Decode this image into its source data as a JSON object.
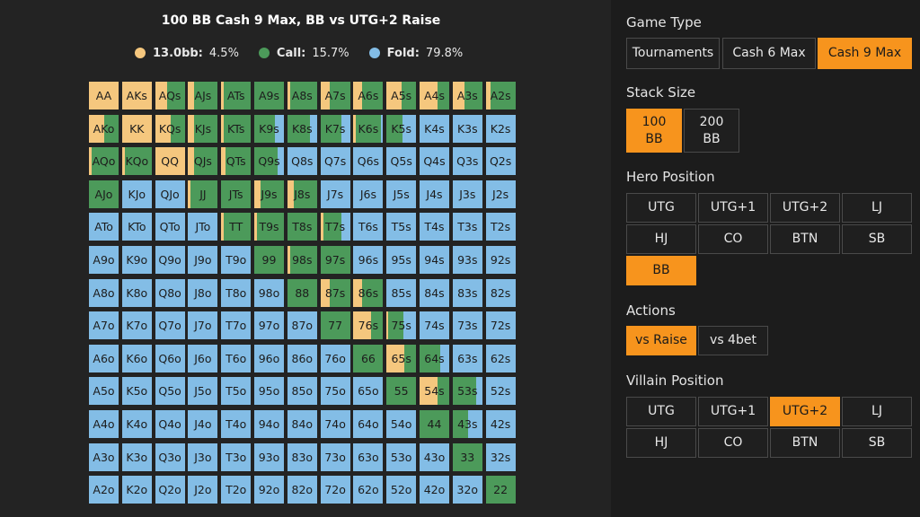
{
  "chart": {
    "title": "100 BB Cash 9 Max, BB vs UTG+2 Raise",
    "legend": [
      {
        "name": "13.0bb:",
        "value": "4.5%",
        "color": "#f5c77e"
      },
      {
        "name": "Call:",
        "value": "15.7%",
        "color": "#4c9a5a"
      },
      {
        "name": "Fold:",
        "value": "79.8%",
        "color": "#83bde6"
      }
    ],
    "colors": {
      "raise": "#f5c77e",
      "call": "#4c9a5a",
      "fold": "#83bde6"
    },
    "hands": [
      [
        "AA",
        "AKs",
        "AQs",
        "AJs",
        "ATs",
        "A9s",
        "A8s",
        "A7s",
        "A6s",
        "A5s",
        "A4s",
        "A3s",
        "A2s"
      ],
      [
        "AKo",
        "KK",
        "KQs",
        "KJs",
        "KTs",
        "K9s",
        "K8s",
        "K7s",
        "K6s",
        "K5s",
        "K4s",
        "K3s",
        "K2s"
      ],
      [
        "AQo",
        "KQo",
        "QQ",
        "QJs",
        "QTs",
        "Q9s",
        "Q8s",
        "Q7s",
        "Q6s",
        "Q5s",
        "Q4s",
        "Q3s",
        "Q2s"
      ],
      [
        "AJo",
        "KJo",
        "QJo",
        "JJ",
        "JTs",
        "J9s",
        "J8s",
        "J7s",
        "J6s",
        "J5s",
        "J4s",
        "J3s",
        "J2s"
      ],
      [
        "ATo",
        "KTo",
        "QTo",
        "JTo",
        "TT",
        "T9s",
        "T8s",
        "T7s",
        "T6s",
        "T5s",
        "T4s",
        "T3s",
        "T2s"
      ],
      [
        "A9o",
        "K9o",
        "Q9o",
        "J9o",
        "T9o",
        "99",
        "98s",
        "97s",
        "96s",
        "95s",
        "94s",
        "93s",
        "92s"
      ],
      [
        "A8o",
        "K8o",
        "Q8o",
        "J8o",
        "T8o",
        "98o",
        "88",
        "87s",
        "86s",
        "85s",
        "84s",
        "83s",
        "82s"
      ],
      [
        "A7o",
        "K7o",
        "Q7o",
        "J7o",
        "T7o",
        "97o",
        "87o",
        "77",
        "76s",
        "75s",
        "74s",
        "73s",
        "72s"
      ],
      [
        "A6o",
        "K6o",
        "Q6o",
        "J6o",
        "T6o",
        "96o",
        "86o",
        "76o",
        "66",
        "65s",
        "64s",
        "63s",
        "62s"
      ],
      [
        "A5o",
        "K5o",
        "Q5o",
        "J5o",
        "T5o",
        "95o",
        "85o",
        "75o",
        "65o",
        "55",
        "54s",
        "53s",
        "52s"
      ],
      [
        "A4o",
        "K4o",
        "Q4o",
        "J4o",
        "T4o",
        "94o",
        "84o",
        "74o",
        "64o",
        "54o",
        "44",
        "43s",
        "42s"
      ],
      [
        "A3o",
        "K3o",
        "Q3o",
        "J3o",
        "T3o",
        "93o",
        "83o",
        "73o",
        "63o",
        "53o",
        "43o",
        "33",
        "32s"
      ],
      [
        "A2o",
        "K2o",
        "Q2o",
        "J2o",
        "T2o",
        "92o",
        "82o",
        "72o",
        "62o",
        "52o",
        "42o",
        "32o",
        "22"
      ]
    ],
    "mix": {
      "AA": [
        1,
        0
      ],
      "AKs": [
        1,
        0
      ],
      "AQs": [
        0.4,
        0.6
      ],
      "AJs": [
        0.2,
        0.8
      ],
      "ATs": [
        0.1,
        0.9
      ],
      "A9s": [
        0,
        1
      ],
      "A8s": [
        0.1,
        0.9
      ],
      "A7s": [
        0.3,
        0.7
      ],
      "A6s": [
        0.3,
        0.7
      ],
      "A5s": [
        0.5,
        0.5
      ],
      "A4s": [
        0.6,
        0.4
      ],
      "A3s": [
        0.4,
        0.6
      ],
      "A2s": [
        0.15,
        0.85
      ],
      "AKo": [
        0.5,
        0.5
      ],
      "KK": [
        1,
        0
      ],
      "KQs": [
        0.5,
        0.5
      ],
      "KJs": [
        0.2,
        0.8
      ],
      "KTs": [
        0.1,
        0.9
      ],
      "K9s": [
        0,
        0.7
      ],
      "K8s": [
        0,
        0.75
      ],
      "K7s": [
        0,
        0.7
      ],
      "K6s": [
        0.1,
        0.85
      ],
      "K5s": [
        0,
        0.55
      ],
      "AQo": [
        0.1,
        0.9
      ],
      "KQo": [
        0.1,
        0.9
      ],
      "QQ": [
        1,
        0
      ],
      "QJs": [
        0.2,
        0.8
      ],
      "QTs": [
        0.15,
        0.85
      ],
      "Q9s": [
        0,
        0.8
      ],
      "AJo": [
        0,
        1
      ],
      "JJ": [
        0.1,
        0.9
      ],
      "JTs": [
        0,
        1
      ],
      "J9s": [
        0.2,
        0.8
      ],
      "J8s": [
        0.2,
        0.8
      ],
      "TT": [
        0.1,
        0.9
      ],
      "T9s": [
        0.1,
        0.9
      ],
      "T8s": [
        0,
        1
      ],
      "T7s": [
        0.1,
        0.6
      ],
      "99": [
        0,
        1
      ],
      "98s": [
        0.1,
        0.9
      ],
      "97s": [
        0,
        1
      ],
      "88": [
        0,
        1
      ],
      "87s": [
        0.3,
        0.7
      ],
      "86s": [
        0.3,
        0.7
      ],
      "77": [
        0,
        1
      ],
      "76s": [
        0.6,
        0.4
      ],
      "75s": [
        0.05,
        0.5
      ],
      "66": [
        0,
        1
      ],
      "65s": [
        0.6,
        0.4
      ],
      "64s": [
        0,
        0.7
      ],
      "55": [
        0,
        1
      ],
      "54s": [
        0.6,
        0.4
      ],
      "53s": [
        0,
        0.8
      ],
      "44": [
        0,
        1
      ],
      "43s": [
        0,
        0.5
      ],
      "33": [
        0,
        1
      ],
      "22": [
        0,
        1
      ]
    }
  },
  "panel": {
    "game_type": {
      "title": "Game Type",
      "options": [
        "Tournaments",
        "Cash 6 Max",
        "Cash 9 Max"
      ],
      "selected": 2
    },
    "stack_size": {
      "title": "Stack Size",
      "options": [
        "100\nBB",
        "200\nBB"
      ],
      "selected": 0
    },
    "hero_position": {
      "title": "Hero Position",
      "options": [
        "UTG",
        "UTG+1",
        "UTG+2",
        "LJ",
        "HJ",
        "CO",
        "BTN",
        "SB",
        "BB"
      ],
      "selected": 8
    },
    "actions": {
      "title": "Actions",
      "options": [
        "vs Raise",
        "vs 4bet"
      ],
      "selected": 0
    },
    "villain_position": {
      "title": "Villain Position",
      "options": [
        "UTG",
        "UTG+1",
        "UTG+2",
        "LJ",
        "HJ",
        "CO",
        "BTN",
        "SB"
      ],
      "selected": 2
    }
  }
}
